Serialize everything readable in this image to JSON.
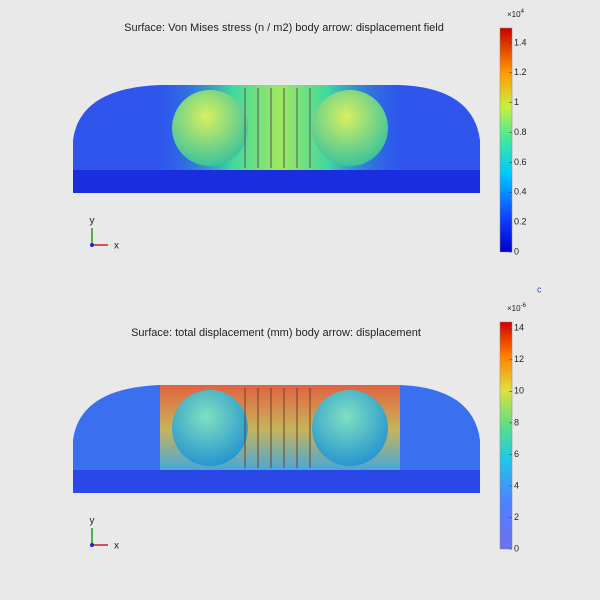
{
  "plots": [
    {
      "title": "Surface: Von Mises stress (n / m2) body arrow: displacement field",
      "colorbar": {
        "multiplier": "×10",
        "exponent": "4",
        "lim": [
          0,
          1.5
        ],
        "ticks": [
          0,
          0.2,
          0.4,
          0.6,
          0.8,
          1,
          1.2,
          1.4
        ]
      },
      "axes": {
        "y": "y",
        "x": "x"
      }
    },
    {
      "title": "Surface: total displacement (mm) body arrow: displacement",
      "colorbar": {
        "multiplier": "×10",
        "exponent": "-6",
        "lim": [
          0,
          14.4
        ],
        "ticks": [
          0,
          2,
          4,
          6,
          8,
          10,
          12,
          14
        ]
      },
      "axes": {
        "y": "y",
        "x": "x"
      }
    }
  ],
  "marker": "c"
}
